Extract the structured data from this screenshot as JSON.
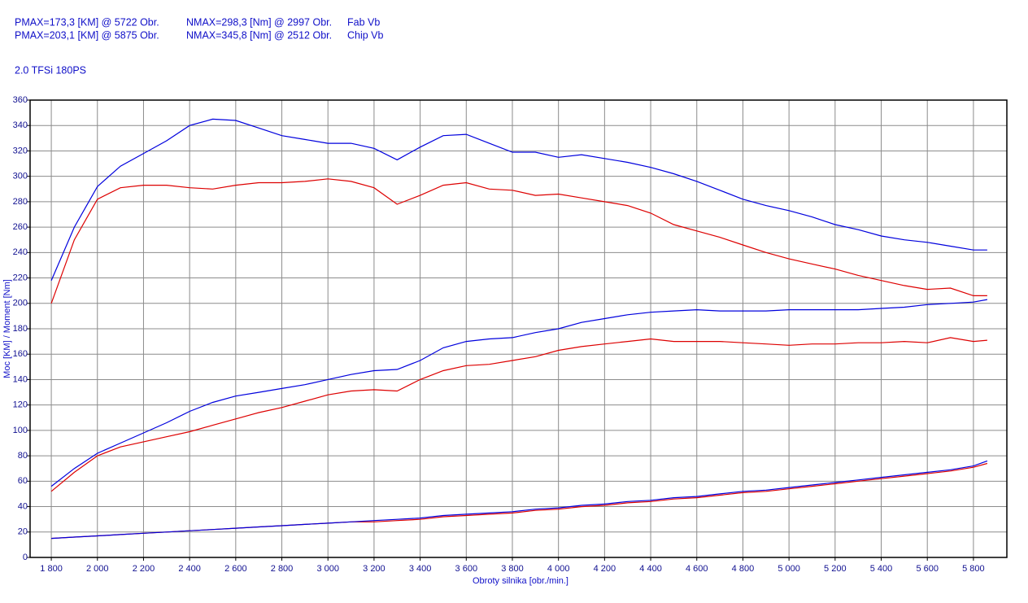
{
  "chart_data": {
    "type": "line",
    "subtitle": "2.0 TFSi 180PS",
    "xlabel": "Obroty silnika [obr./min.]",
    "ylabel": "Moc [KM] / Moment [Nm]",
    "grid": true,
    "xlim": [
      1708,
      5945
    ],
    "ylim": [
      0,
      360
    ],
    "xticks": [
      {
        "value": 1800,
        "label": "1 800"
      },
      {
        "value": 2000,
        "label": "2 000"
      },
      {
        "value": 2200,
        "label": "2 200"
      },
      {
        "value": 2400,
        "label": "2 400"
      },
      {
        "value": 2600,
        "label": "2 600"
      },
      {
        "value": 2800,
        "label": "2 800"
      },
      {
        "value": 3000,
        "label": "3 000"
      },
      {
        "value": 3200,
        "label": "3 200"
      },
      {
        "value": 3400,
        "label": "3 400"
      },
      {
        "value": 3600,
        "label": "3 600"
      },
      {
        "value": 3800,
        "label": "3 800"
      },
      {
        "value": 4000,
        "label": "4 000"
      },
      {
        "value": 4200,
        "label": "4 200"
      },
      {
        "value": 4400,
        "label": "4 400"
      },
      {
        "value": 4600,
        "label": "4 600"
      },
      {
        "value": 4800,
        "label": "4 800"
      },
      {
        "value": 5000,
        "label": "5 000"
      },
      {
        "value": 5200,
        "label": "5 200"
      },
      {
        "value": 5400,
        "label": "5 400"
      },
      {
        "value": 5600,
        "label": "5 600"
      },
      {
        "value": 5800,
        "label": "5 800"
      }
    ],
    "yticks": [
      0,
      20,
      40,
      60,
      80,
      100,
      120,
      140,
      160,
      180,
      200,
      220,
      240,
      260,
      280,
      300,
      320,
      340,
      360
    ],
    "x": [
      1800,
      1900,
      2000,
      2100,
      2200,
      2300,
      2400,
      2500,
      2600,
      2700,
      2800,
      2900,
      3000,
      3100,
      3200,
      3300,
      3400,
      3500,
      3600,
      3700,
      3800,
      3900,
      4000,
      4100,
      4200,
      4300,
      4400,
      4500,
      4600,
      4700,
      4800,
      4900,
      5000,
      5100,
      5200,
      5300,
      5400,
      5500,
      5600,
      5700,
      5800,
      5860
    ],
    "series": [
      {
        "name": "Fab Vb",
        "color": "#dd0000",
        "pmax": "PMAX=173,3 [KM] @ 5722 Obr.",
        "nmax": "NMAX=298,3 [Nm] @ 2997 Obr.",
        "torque": [
          200,
          250,
          282,
          291,
          293,
          293,
          291,
          290,
          293,
          295,
          295,
          296,
          298,
          296,
          291,
          278,
          285,
          293,
          295,
          290,
          289,
          285,
          286,
          283,
          280,
          277,
          271,
          262,
          257,
          252,
          246,
          240,
          235,
          231,
          227,
          222,
          218,
          214,
          211,
          212,
          206,
          206
        ],
        "power": [
          52,
          67,
          80,
          87,
          91,
          95,
          99,
          104,
          109,
          114,
          118,
          123,
          128,
          131,
          132,
          131,
          140,
          147,
          151,
          152,
          155,
          158,
          163,
          166,
          168,
          170,
          172,
          170,
          170,
          170,
          169,
          168,
          167,
          168,
          168,
          169,
          169,
          170,
          169,
          173,
          170,
          171
        ],
        "loss": [
          15,
          16,
          17,
          18,
          19,
          20,
          21,
          22,
          23,
          24,
          25,
          26,
          27,
          28,
          28,
          29,
          30,
          32,
          33,
          34,
          35,
          37,
          38,
          40,
          41,
          43,
          44,
          46,
          47,
          49,
          51,
          52,
          54,
          56,
          58,
          60,
          62,
          64,
          66,
          68,
          71,
          74
        ]
      },
      {
        "name": "Chip Vb",
        "color": "#0000dd",
        "pmax": "PMAX=203,1 [KM] @ 5875 Obr.",
        "nmax": "NMAX=345,8 [Nm] @ 2512 Obr.",
        "torque": [
          218,
          260,
          292,
          308,
          318,
          328,
          340,
          345,
          344,
          338,
          332,
          329,
          326,
          326,
          322,
          313,
          323,
          332,
          333,
          326,
          319,
          319,
          315,
          317,
          314,
          311,
          307,
          302,
          296,
          289,
          282,
          277,
          273,
          268,
          262,
          258,
          253,
          250,
          248,
          245,
          242,
          242
        ],
        "power": [
          56,
          70,
          82,
          90,
          98,
          106,
          115,
          122,
          127,
          130,
          133,
          136,
          140,
          144,
          147,
          148,
          155,
          165,
          170,
          172,
          173,
          177,
          180,
          185,
          188,
          191,
          193,
          194,
          195,
          194,
          194,
          194,
          195,
          195,
          195,
          195,
          196,
          197,
          199,
          200,
          201,
          203
        ],
        "loss": [
          15,
          16,
          17,
          18,
          19,
          20,
          21,
          22,
          23,
          24,
          25,
          26,
          27,
          28,
          29,
          30,
          31,
          33,
          34,
          35,
          36,
          38,
          39,
          41,
          42,
          44,
          45,
          47,
          48,
          50,
          52,
          53,
          55,
          57,
          59,
          61,
          63,
          65,
          67,
          69,
          72,
          76
        ]
      }
    ]
  }
}
